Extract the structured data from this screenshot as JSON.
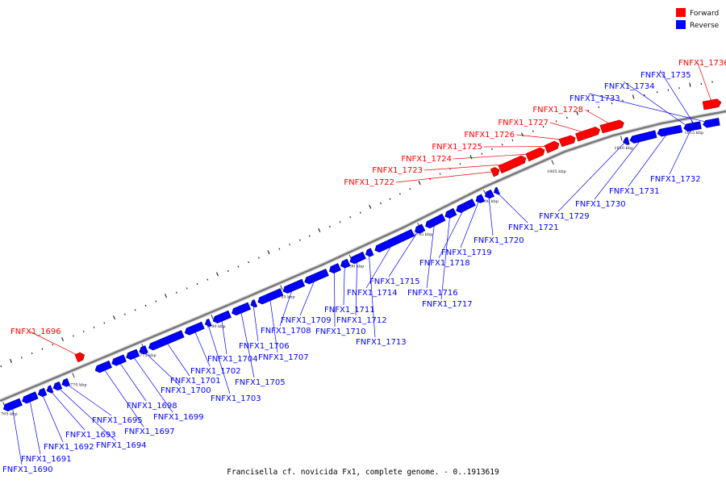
{
  "legend": {
    "forward_label": "Forward",
    "reverse_label": "Reverse",
    "forward_color": "#ff0000",
    "reverse_color": "#0000ff"
  },
  "caption": "Francisella cf. novicida Fx1, complete genome. - 0..1913619",
  "scale_unit": "kbp",
  "ticks": [
    1765,
    1770,
    1775,
    1780,
    1785,
    1790,
    1795,
    1800,
    1805,
    1810,
    1815
  ],
  "genes": [
    {
      "label": "FNFX1_1690",
      "strand": "reverse"
    },
    {
      "label": "FNFX1_1691",
      "strand": "reverse"
    },
    {
      "label": "FNFX1_1692",
      "strand": "reverse"
    },
    {
      "label": "FNFX1_1693",
      "strand": "reverse"
    },
    {
      "label": "FNFX1_1694",
      "strand": "reverse"
    },
    {
      "label": "FNFX1_1695",
      "strand": "reverse"
    },
    {
      "label": "FNFX1_1696",
      "strand": "forward"
    },
    {
      "label": "FNFX1_1697",
      "strand": "reverse"
    },
    {
      "label": "FNFX1_1698",
      "strand": "reverse"
    },
    {
      "label": "FNFX1_1699",
      "strand": "reverse"
    },
    {
      "label": "FNFX1_1700",
      "strand": "reverse"
    },
    {
      "label": "FNFX1_1701",
      "strand": "reverse"
    },
    {
      "label": "FNFX1_1702",
      "strand": "reverse"
    },
    {
      "label": "FNFX1_1703",
      "strand": "reverse"
    },
    {
      "label": "FNFX1_1704",
      "strand": "reverse"
    },
    {
      "label": "FNFX1_1705",
      "strand": "reverse"
    },
    {
      "label": "FNFX1_1706",
      "strand": "reverse"
    },
    {
      "label": "FNFX1_1707",
      "strand": "reverse"
    },
    {
      "label": "FNFX1_1708",
      "strand": "reverse"
    },
    {
      "label": "FNFX1_1709",
      "strand": "reverse"
    },
    {
      "label": "FNFX1_1710",
      "strand": "reverse"
    },
    {
      "label": "FNFX1_1711",
      "strand": "reverse"
    },
    {
      "label": "FNFX1_1712",
      "strand": "reverse"
    },
    {
      "label": "FNFX1_1713",
      "strand": "reverse"
    },
    {
      "label": "FNFX1_1714",
      "strand": "reverse"
    },
    {
      "label": "FNFX1_1715",
      "strand": "reverse"
    },
    {
      "label": "FNFX1_1716",
      "strand": "reverse"
    },
    {
      "label": "FNFX1_1717",
      "strand": "reverse"
    },
    {
      "label": "FNFX1_1718",
      "strand": "reverse"
    },
    {
      "label": "FNFX1_1719",
      "strand": "reverse"
    },
    {
      "label": "FNFX1_1720",
      "strand": "reverse"
    },
    {
      "label": "FNFX1_1721",
      "strand": "reverse"
    },
    {
      "label": "FNFX1_1722",
      "strand": "forward"
    },
    {
      "label": "FNFX1_1723",
      "strand": "forward"
    },
    {
      "label": "FNFX1_1724",
      "strand": "forward"
    },
    {
      "label": "FNFX1_1725",
      "strand": "forward"
    },
    {
      "label": "FNFX1_1726",
      "strand": "forward"
    },
    {
      "label": "FNFX1_1727",
      "strand": "forward"
    },
    {
      "label": "FNFX1_1728",
      "strand": "forward"
    },
    {
      "label": "FNFX1_1729",
      "strand": "reverse"
    },
    {
      "label": "FNFX1_1730",
      "strand": "reverse"
    },
    {
      "label": "FNFX1_1731",
      "strand": "reverse"
    },
    {
      "label": "FNFX1_1732",
      "strand": "reverse"
    },
    {
      "label": "FNFX1_1733",
      "strand": "reverse"
    },
    {
      "label": "FNFX1_1734",
      "strand": "reverse"
    },
    {
      "label": "FNFX1_1735",
      "strand": "reverse"
    },
    {
      "label": "FNFX1_1736",
      "strand": "forward"
    }
  ]
}
